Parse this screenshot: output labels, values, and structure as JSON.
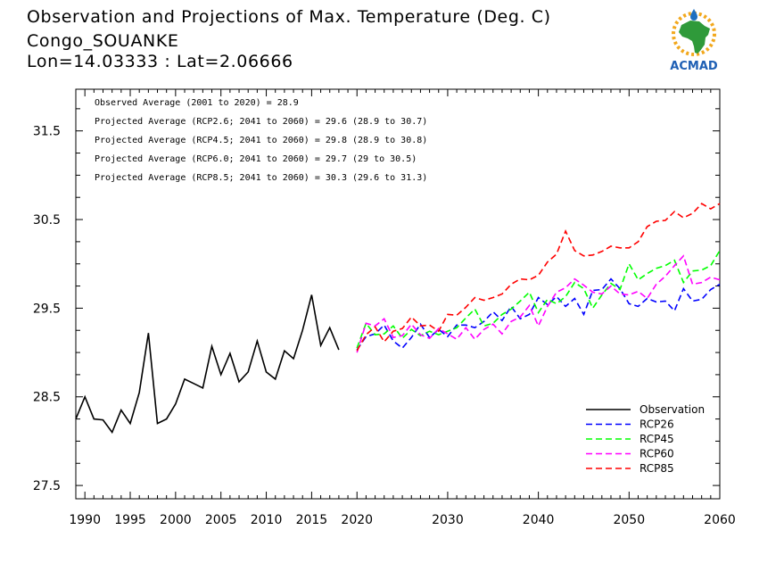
{
  "header": {
    "title_line1": "Observation and Projections of Max. Temperature (Deg. C)",
    "title_line2": "Congo_SOUANKE",
    "title_line3": "Lon=14.03333 : Lat=2.06666"
  },
  "logo": {
    "text": "ACMAD",
    "icon": "africa-map-sun-logo"
  },
  "colors": {
    "Observation": "#000000",
    "RCP26": "#0000ff",
    "RCP45": "#00ff00",
    "RCP60": "#ff00ff",
    "RCP85": "#ff0000"
  },
  "chart_data": {
    "type": "line",
    "title": "Observation and Projections of Max. Temperature (Deg. C)",
    "xlim": [
      1989,
      2060
    ],
    "ylim": [
      27.35,
      31.97
    ],
    "x_ticks": [
      1990,
      1995,
      2000,
      2005,
      2010,
      2015,
      2020,
      2030,
      2040,
      2050,
      2060
    ],
    "y_ticks": [
      27.5,
      28.5,
      29.5,
      30.5,
      31.5
    ],
    "y_tick_labels": [
      "27.5",
      "28.5",
      "29.5",
      "30.5",
      "31.5"
    ],
    "stats": [
      "Observed Average (2001 to 2020) = 28.9",
      "Projected Average (RCP2.6; 2041 to 2060) = 29.6 (28.9 to 30.7)",
      "Projected Average (RCP4.5; 2041 to 2060) = 29.8 (28.9 to 30.8)",
      "Projected Average (RCP6.0; 2041 to 2060) = 29.7 (29 to 30.5)",
      "Projected Average (RCP8.5; 2041 to 2060) = 30.3 (29.6 to 31.3)"
    ],
    "legend_position": "bottom-right",
    "series": [
      {
        "name": "Observation",
        "style": "solid",
        "x_start": 1989,
        "values": [
          28.25,
          28.5,
          28.25,
          28.24,
          28.1,
          28.35,
          28.2,
          28.55,
          29.22,
          28.2,
          28.25,
          28.42,
          28.7,
          28.65,
          28.6,
          29.07,
          28.75,
          28.99,
          28.67,
          28.78,
          29.13,
          28.78,
          28.7,
          29.02,
          28.93,
          29.25,
          29.65,
          29.08,
          29.28,
          29.03
        ]
      },
      {
        "name": "RCP26",
        "style": "dashed",
        "x_start": 2020,
        "values": [
          29.03,
          29.18,
          29.21,
          29.31,
          29.13,
          29.05,
          29.17,
          29.32,
          29.17,
          29.26,
          29.18,
          29.31,
          29.31,
          29.28,
          29.35,
          29.46,
          29.36,
          29.52,
          29.38,
          29.43,
          29.62,
          29.54,
          29.63,
          29.52,
          29.61,
          29.43,
          29.7,
          29.71,
          29.83,
          29.72,
          29.55,
          29.52,
          29.61,
          29.57,
          29.58,
          29.47,
          29.72,
          29.58,
          29.6,
          29.71,
          29.77
        ]
      },
      {
        "name": "RCP45",
        "style": "dashed",
        "x_start": 2020,
        "values": [
          29.05,
          29.33,
          29.2,
          29.21,
          29.3,
          29.16,
          29.26,
          29.19,
          29.24,
          29.2,
          29.24,
          29.28,
          29.39,
          29.49,
          29.3,
          29.33,
          29.43,
          29.49,
          29.58,
          29.68,
          29.45,
          29.6,
          29.55,
          29.63,
          29.79,
          29.72,
          29.5,
          29.65,
          29.78,
          29.71,
          30.0,
          29.82,
          29.89,
          29.95,
          29.98,
          30.04,
          29.79,
          29.92,
          29.93,
          29.98,
          30.15
        ]
      },
      {
        "name": "RCP60",
        "style": "dashed",
        "x_start": 2020,
        "values": [
          29.0,
          29.33,
          29.3,
          29.38,
          29.17,
          29.19,
          29.32,
          29.2,
          29.16,
          29.27,
          29.21,
          29.15,
          29.28,
          29.15,
          29.26,
          29.32,
          29.21,
          29.35,
          29.4,
          29.53,
          29.3,
          29.52,
          29.68,
          29.73,
          29.83,
          29.76,
          29.68,
          29.66,
          29.75,
          29.66,
          29.65,
          29.69,
          29.61,
          29.77,
          29.86,
          29.98,
          30.09,
          29.77,
          29.79,
          29.85,
          29.82
        ]
      },
      {
        "name": "RCP85",
        "style": "dashed",
        "x_start": 2020,
        "values": [
          29.02,
          29.2,
          29.29,
          29.12,
          29.24,
          29.27,
          29.4,
          29.3,
          29.31,
          29.24,
          29.43,
          29.42,
          29.51,
          29.62,
          29.59,
          29.62,
          29.66,
          29.77,
          29.83,
          29.82,
          29.87,
          30.02,
          30.11,
          30.37,
          30.15,
          30.09,
          30.1,
          30.14,
          30.2,
          30.18,
          30.18,
          30.25,
          30.42,
          30.48,
          30.49,
          30.59,
          30.52,
          30.57,
          30.68,
          30.62,
          30.68
        ]
      }
    ]
  }
}
